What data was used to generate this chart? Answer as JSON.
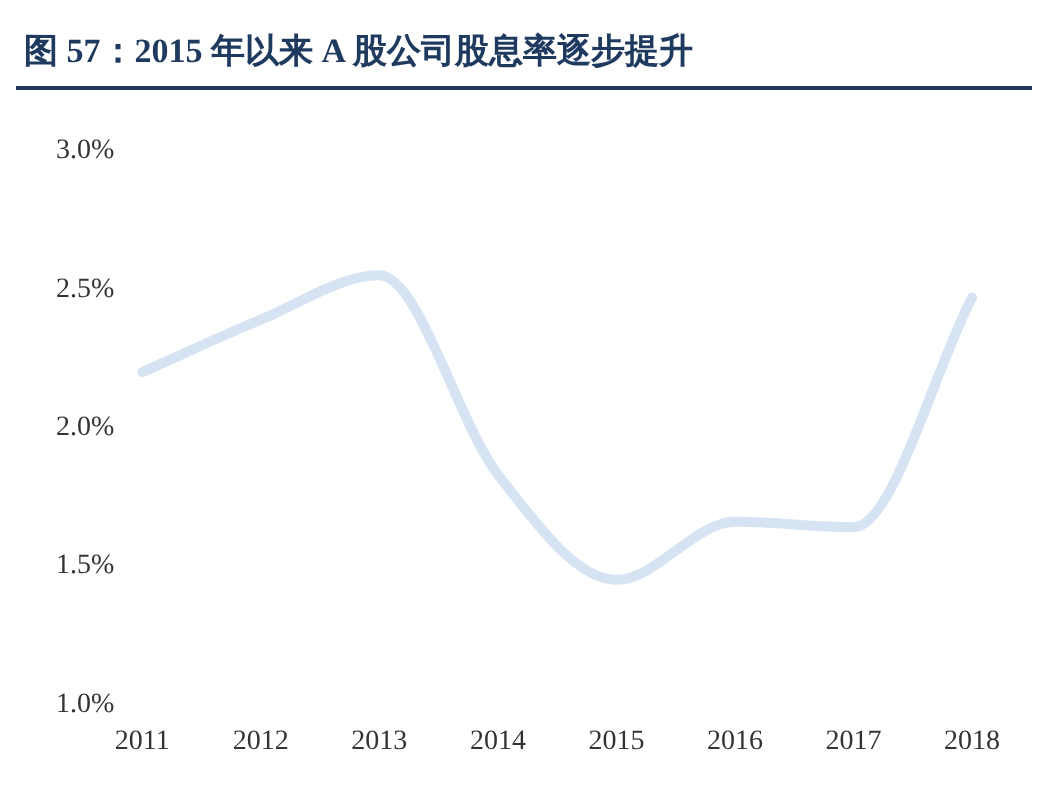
{
  "chart_data": {
    "type": "line",
    "title": "图 57：2015 年以来 A 股公司股息率逐步提升",
    "categories": [
      "2011",
      "2012",
      "2013",
      "2014",
      "2015",
      "2016",
      "2017",
      "2018"
    ],
    "series": [
      {
        "color": "#d5e3f3",
        "values": [
          2.2,
          2.39,
          2.55,
          1.83,
          1.45,
          1.66,
          1.64,
          2.47
        ]
      }
    ],
    "ylim": [
      1.0,
      3.0
    ],
    "yticks": [
      {
        "value": 1.0,
        "label": "1.0%"
      },
      {
        "value": 1.5,
        "label": "1.5%"
      },
      {
        "value": 2.0,
        "label": "2.0%"
      },
      {
        "value": 2.5,
        "label": "2.5%"
      },
      {
        "value": 3.0,
        "label": "3.0%"
      }
    ],
    "grid": false,
    "legend": false,
    "marker": "none",
    "line_style": "solid"
  }
}
